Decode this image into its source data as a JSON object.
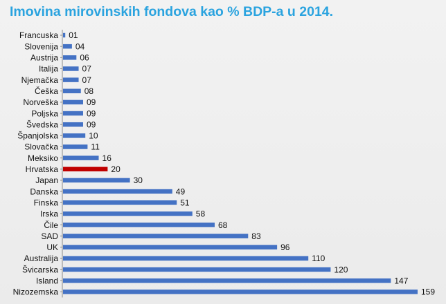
{
  "title": "Imovina mirovinskih fondova kao % BDP-a u 2014.",
  "colors": {
    "bar": "#4472c4",
    "highlight": "#c00000",
    "title": "#2aa3df",
    "axis": "#8a8a8a"
  },
  "chart_data": {
    "type": "bar",
    "orientation": "horizontal",
    "title": "Imovina mirovinskih fondova kao % BDP-a u 2014.",
    "xlabel": "",
    "ylabel": "",
    "xlim": [
      0,
      159
    ],
    "grid": false,
    "legend": "none",
    "highlight_category": "Hrvatska",
    "categories": [
      "Francuska",
      "Slovenija",
      "Austrija",
      "Italija",
      "Njemačka",
      "Češka",
      "Norveška",
      "Poljska",
      "Švedska",
      "Španjolska",
      "Slovačka",
      "Meksiko",
      "Hrvatska",
      "Japan",
      "Danska",
      "Finska",
      "Irska",
      "Čile",
      "SAD",
      "UK",
      "Australija",
      "Švicarska",
      "Island",
      "Nizozemska"
    ],
    "values": [
      1,
      4,
      6,
      7,
      7,
      8,
      9,
      9,
      9,
      10,
      11,
      16,
      20,
      30,
      49,
      51,
      58,
      68,
      83,
      96,
      110,
      120,
      147,
      159
    ],
    "value_labels": [
      "01",
      "04",
      "06",
      "07",
      "07",
      "08",
      "09",
      "09",
      "09",
      "10",
      "11",
      "16",
      "20",
      "30",
      "49",
      "51",
      "58",
      "68",
      "83",
      "96",
      "110",
      "120",
      "147",
      "159"
    ]
  }
}
